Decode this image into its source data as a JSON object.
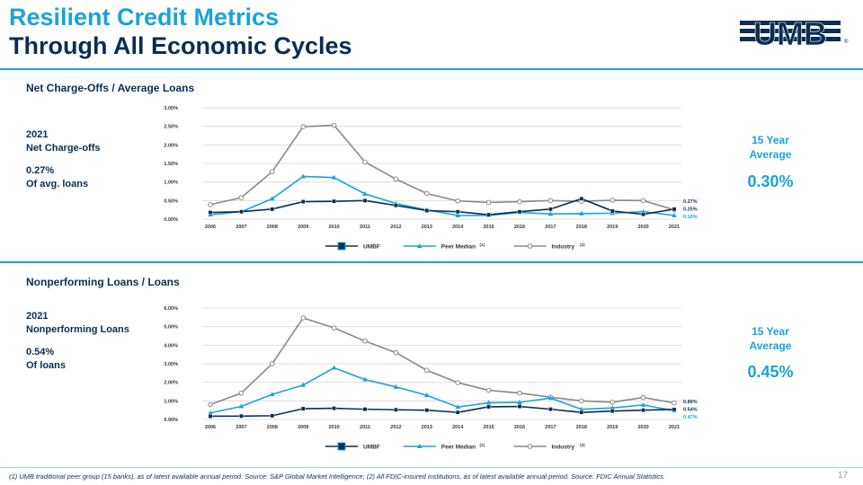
{
  "header": {
    "title_line1": "Resilient Credit Metrics",
    "title_line2": "Through All Economic Cycles",
    "logo_text": "UMB",
    "logo_registered": "®"
  },
  "colors": {
    "umbf": "#0b2d52",
    "peer": "#1aa3d9",
    "industry": "#8a8a8a",
    "title_accent": "#1aa3d9"
  },
  "sections": [
    {
      "title": "Net Charge-Offs / Average Loans",
      "side": {
        "year": "2021",
        "metric": "Net Charge-offs",
        "value": "0.27%",
        "unit": "Of avg. loans"
      },
      "avg_label_1": "15 Year",
      "avg_label_2": "Average",
      "avg_value": "0.30%"
    },
    {
      "title": "Nonperforming Loans / Loans",
      "side": {
        "year": "2021",
        "metric": "Nonperforming Loans",
        "value": "0.54%",
        "unit": "Of loans"
      },
      "avg_label_1": "15 Year",
      "avg_label_2": "Average",
      "avg_value": "0.45%"
    }
  ],
  "chart_data": [
    {
      "type": "line",
      "categories": [
        "2006",
        "2007",
        "2008",
        "2009",
        "2010",
        "2011",
        "2012",
        "2013",
        "2014",
        "2015",
        "2016",
        "2017",
        "2018",
        "2019",
        "2020",
        "2021"
      ],
      "yticks": [
        "0.00%",
        "0.50%",
        "1.00%",
        "1.50%",
        "2.00%",
        "2.50%",
        "3.00%"
      ],
      "ylim": [
        0,
        3
      ],
      "grid": true,
      "legend_position": "bottom",
      "end_labels": [
        "0.27%",
        "0.25%",
        "0.10%"
      ],
      "series": [
        {
          "name": "UMBF",
          "footnote": "",
          "color": "#0b2d52",
          "marker": "square",
          "values": [
            0.18,
            0.2,
            0.27,
            0.47,
            0.48,
            0.5,
            0.37,
            0.23,
            0.2,
            0.12,
            0.2,
            0.27,
            0.55,
            0.22,
            0.13,
            0.27
          ]
        },
        {
          "name": "Peer Median",
          "footnote": "(1)",
          "color": "#1aa3d9",
          "marker": "triangle",
          "values": [
            0.12,
            0.2,
            0.55,
            1.15,
            1.12,
            0.68,
            0.42,
            0.25,
            0.1,
            0.1,
            0.18,
            0.14,
            0.15,
            0.16,
            0.2,
            0.1
          ]
        },
        {
          "name": "Industry",
          "footnote": "(2)",
          "color": "#8a8a8a",
          "marker": "circle",
          "values": [
            0.39,
            0.58,
            1.28,
            2.49,
            2.53,
            1.54,
            1.08,
            0.69,
            0.49,
            0.45,
            0.47,
            0.5,
            0.48,
            0.51,
            0.5,
            0.25
          ]
        }
      ]
    },
    {
      "type": "line",
      "categories": [
        "2006",
        "2007",
        "2008",
        "2009",
        "2010",
        "2011",
        "2012",
        "2013",
        "2014",
        "2015",
        "2016",
        "2017",
        "2018",
        "2019",
        "2020",
        "2021"
      ],
      "yticks": [
        "0.00%",
        "1.00%",
        "2.00%",
        "3.00%",
        "4.00%",
        "5.00%",
        "6.00%"
      ],
      "ylim": [
        0,
        6
      ],
      "grid": true,
      "legend_position": "bottom",
      "end_labels": [
        "0.89%",
        "0.54%",
        "0.47%"
      ],
      "series": [
        {
          "name": "UMBF",
          "footnote": "",
          "color": "#0b2d52",
          "marker": "square",
          "values": [
            0.17,
            0.18,
            0.2,
            0.58,
            0.6,
            0.55,
            0.52,
            0.5,
            0.38,
            0.68,
            0.7,
            0.55,
            0.38,
            0.45,
            0.5,
            0.54
          ]
        },
        {
          "name": "Peer Median",
          "footnote": "(1)",
          "color": "#1aa3d9",
          "marker": "triangle",
          "values": [
            0.35,
            0.7,
            1.35,
            1.85,
            2.78,
            2.15,
            1.75,
            1.3,
            0.67,
            0.9,
            0.92,
            1.15,
            0.55,
            0.62,
            0.78,
            0.47
          ]
        },
        {
          "name": "Industry",
          "footnote": "(2)",
          "color": "#8a8a8a",
          "marker": "circle",
          "values": [
            0.8,
            1.42,
            3.0,
            5.47,
            4.93,
            4.22,
            3.6,
            2.65,
            1.98,
            1.57,
            1.42,
            1.2,
            1.0,
            0.93,
            1.18,
            0.89
          ]
        }
      ]
    }
  ],
  "footer": {
    "footnote": "(1) UMB traditional peer group (15 banks), as of latest available annual period. Source: S&P Global Market Intelligence; (2) All FDIC-insured institutions, as of latest available annual period. Source: FDIC Annual Statistics.",
    "page_number": "17"
  }
}
